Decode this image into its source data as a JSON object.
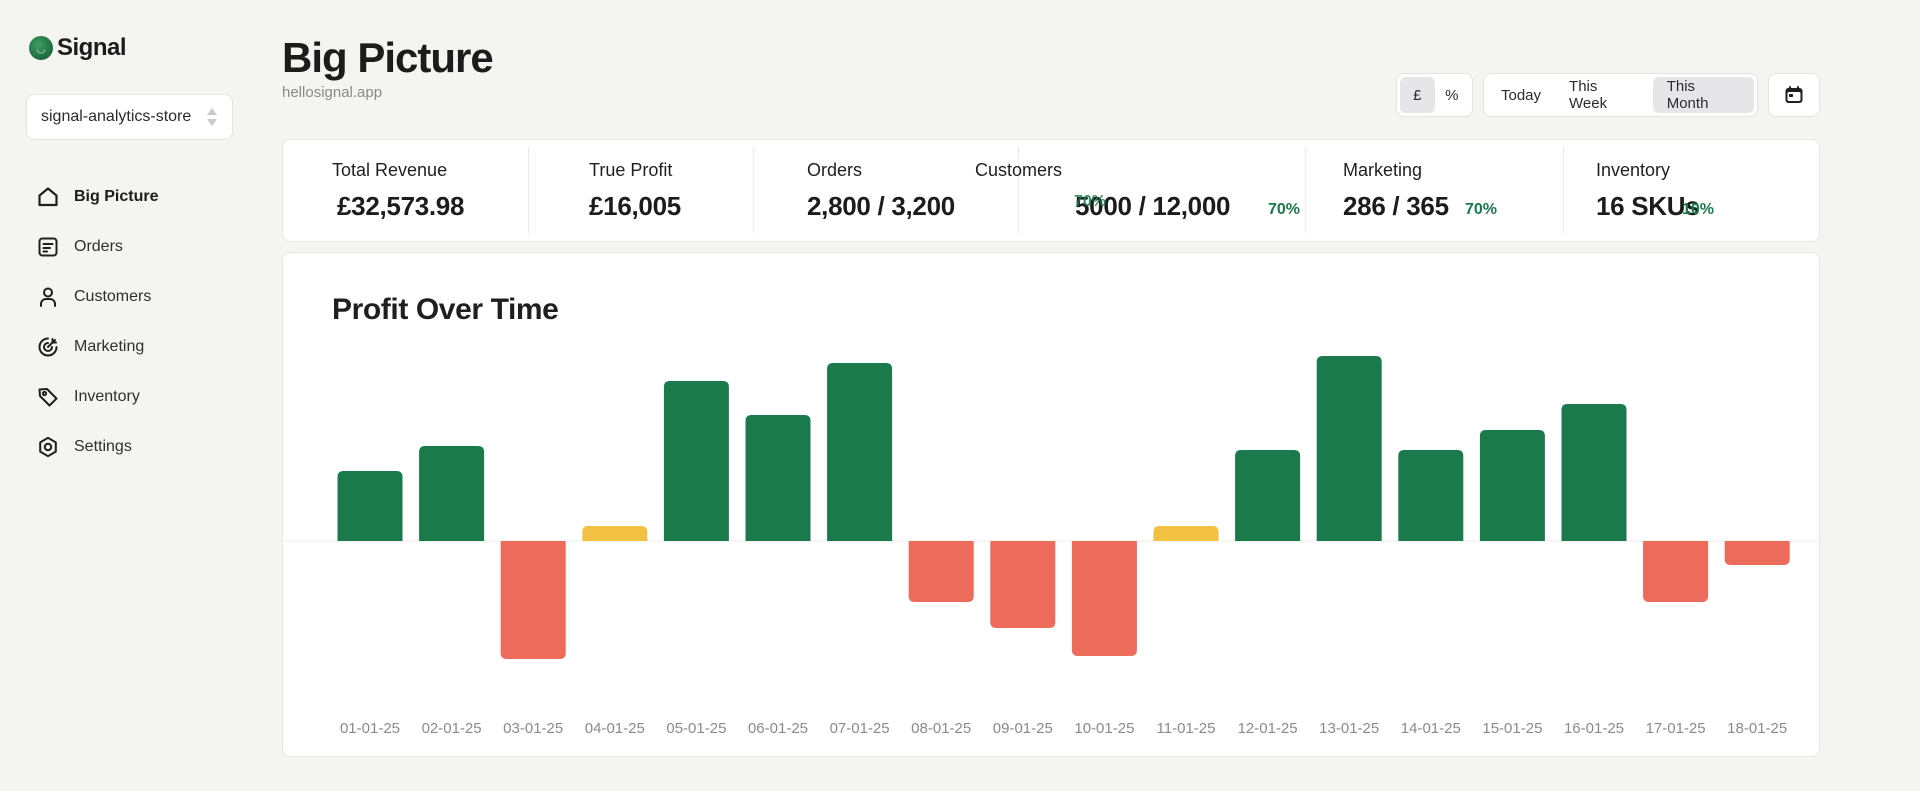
{
  "brand": {
    "name": "Signal",
    "logo_icon": "signal-logo-icon"
  },
  "store": {
    "selected": "signal-analytics-store"
  },
  "sidebar": {
    "items": [
      {
        "label": "Big Picture",
        "icon": "home-icon",
        "active": true
      },
      {
        "label": "Orders",
        "icon": "receipt-icon",
        "active": false
      },
      {
        "label": "Customers",
        "icon": "person-icon",
        "active": false
      },
      {
        "label": "Marketing",
        "icon": "target-icon",
        "active": false
      },
      {
        "label": "Inventory",
        "icon": "tag-icon",
        "active": false
      },
      {
        "label": "Settings",
        "icon": "gear-icon",
        "active": false
      }
    ]
  },
  "header": {
    "title": "Big Picture",
    "subtitle": "hellosignal.app",
    "currency_toggle": {
      "options": [
        "£",
        "%"
      ],
      "selected": "£"
    },
    "range_toggle": {
      "options": [
        "Today",
        "This Week",
        "This Month"
      ],
      "selected": "This Month"
    },
    "calendar_icon": "calendar-icon"
  },
  "kpis": [
    {
      "label": "Total Revenue",
      "value": "£32,573.98",
      "delta": ""
    },
    {
      "label": "True Profit",
      "value": "£16,005",
      "delta": ""
    },
    {
      "label": "Orders",
      "value": "2,800 / 3,200",
      "delta": ""
    },
    {
      "label": "Customers",
      "value": "5000 / 12,000",
      "delta": "70%",
      "overlap_delta": "70%"
    },
    {
      "label": "Marketing",
      "value": "286 / 365",
      "delta": "70%"
    },
    {
      "label": "Inventory",
      "value": "16 SKUs",
      "delta": "10%"
    }
  ],
  "colors": {
    "positive": "#1a7a4c",
    "negative": "#ec6b5b",
    "neutral": "#f2c141",
    "delta_text": "#1b7a4b"
  },
  "chart_data": {
    "type": "bar",
    "title": "Profit Over Time",
    "xlabel": "",
    "ylabel": "",
    "categories": [
      "01-01-25",
      "02-01-25",
      "03-01-25",
      "04-01-25",
      "05-01-25",
      "06-01-25",
      "07-01-25",
      "08-01-25",
      "09-01-25",
      "10-01-25",
      "11-01-25",
      "12-01-25",
      "13-01-25",
      "14-01-25",
      "15-01-25",
      "16-01-25",
      "17-01-25",
      "18-01-25"
    ],
    "values": [
      70,
      95,
      -118,
      15,
      160,
      126,
      178,
      -61,
      -87,
      -115,
      15,
      91,
      185,
      91,
      111,
      137,
      -61,
      -24
    ],
    "ylim": [
      -150,
      200
    ],
    "grid": false,
    "legend": "none"
  }
}
